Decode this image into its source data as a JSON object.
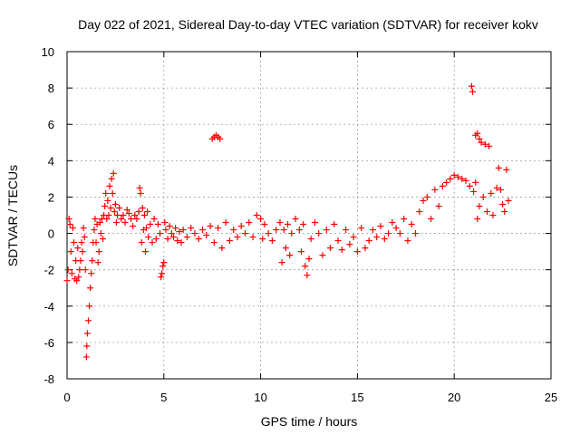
{
  "chart_data": {
    "type": "scatter",
    "title": "Day 022 of 2021, Sidereal Day-to-day VTEC variation (SDTVAR) for receiver kokv",
    "xlabel": "GPS time / hours",
    "ylabel": "SDTVAR / TECUs",
    "xlim": [
      0,
      25
    ],
    "ylim": [
      -8,
      10
    ],
    "xticks": [
      0,
      5,
      10,
      15,
      20,
      25
    ],
    "yticks": [
      -8,
      -6,
      -4,
      -2,
      0,
      2,
      4,
      6,
      8,
      10
    ],
    "grid": true,
    "marker": "+",
    "color": "#ff0000",
    "series": [
      {
        "name": "SDTVAR",
        "points": [
          [
            0.0,
            -2.6
          ],
          [
            0.05,
            -2.0
          ],
          [
            0.1,
            0.8
          ],
          [
            0.15,
            0.5
          ],
          [
            0.2,
            -1.0
          ],
          [
            0.25,
            -2.2
          ],
          [
            0.3,
            0.3
          ],
          [
            0.35,
            -0.5
          ],
          [
            0.4,
            -2.5
          ],
          [
            0.45,
            -1.5
          ],
          [
            0.5,
            -2.6
          ],
          [
            0.55,
            -0.8
          ],
          [
            0.6,
            -2.4
          ],
          [
            0.65,
            -2.0
          ],
          [
            0.7,
            -1.5
          ],
          [
            0.75,
            -0.5
          ],
          [
            0.8,
            -1.0
          ],
          [
            0.85,
            0.3
          ],
          [
            0.9,
            -0.2
          ],
          [
            0.95,
            -2.0
          ],
          [
            1.0,
            -6.8
          ],
          [
            1.02,
            -6.2
          ],
          [
            1.05,
            -5.5
          ],
          [
            1.1,
            -4.8
          ],
          [
            1.15,
            -4.0
          ],
          [
            1.2,
            -3.0
          ],
          [
            1.25,
            -2.2
          ],
          [
            1.3,
            -1.5
          ],
          [
            1.35,
            -0.5
          ],
          [
            1.4,
            0.2
          ],
          [
            1.45,
            0.8
          ],
          [
            1.5,
            -0.5
          ],
          [
            1.55,
            0.5
          ],
          [
            1.6,
            -1.6
          ],
          [
            1.65,
            -1.0
          ],
          [
            1.7,
            0.6
          ],
          [
            1.75,
            0.0
          ],
          [
            1.8,
            0.8
          ],
          [
            1.85,
            -0.3
          ],
          [
            1.9,
            1.0
          ],
          [
            1.95,
            1.5
          ],
          [
            2.0,
            2.2
          ],
          [
            2.05,
            0.8
          ],
          [
            2.1,
            1.8
          ],
          [
            2.15,
            1.0
          ],
          [
            2.2,
            2.6
          ],
          [
            2.25,
            1.4
          ],
          [
            2.3,
            3.0
          ],
          [
            2.35,
            2.2
          ],
          [
            2.4,
            3.3
          ],
          [
            2.45,
            1.2
          ],
          [
            2.5,
            1.6
          ],
          [
            2.55,
            0.6
          ],
          [
            2.6,
            1.0
          ],
          [
            2.7,
            1.4
          ],
          [
            2.8,
            0.8
          ],
          [
            2.9,
            1.0
          ],
          [
            3.0,
            0.6
          ],
          [
            3.1,
            1.3
          ],
          [
            3.2,
            1.1
          ],
          [
            3.3,
            0.8
          ],
          [
            3.4,
            0.4
          ],
          [
            3.5,
            1.0
          ],
          [
            3.6,
            0.8
          ],
          [
            3.7,
            1.2
          ],
          [
            3.75,
            2.5
          ],
          [
            3.8,
            2.2
          ],
          [
            3.85,
            -0.5
          ],
          [
            3.9,
            1.4
          ],
          [
            3.95,
            0.2
          ],
          [
            4.0,
            1.0
          ],
          [
            4.05,
            -1.0
          ],
          [
            4.1,
            0.3
          ],
          [
            4.15,
            1.2
          ],
          [
            4.2,
            -0.2
          ],
          [
            4.3,
            0.5
          ],
          [
            4.4,
            -0.5
          ],
          [
            4.5,
            0.8
          ],
          [
            4.6,
            -0.3
          ],
          [
            4.7,
            0.5
          ],
          [
            4.8,
            0.0
          ],
          [
            4.85,
            -2.4
          ],
          [
            4.9,
            -2.2
          ],
          [
            4.95,
            -1.8
          ],
          [
            5.0,
            -1.6
          ],
          [
            5.05,
            0.6
          ],
          [
            5.1,
            0.2
          ],
          [
            5.2,
            -0.3
          ],
          [
            5.3,
            0.4
          ],
          [
            5.4,
            0.0
          ],
          [
            5.5,
            -0.2
          ],
          [
            5.6,
            0.3
          ],
          [
            5.7,
            -0.4
          ],
          [
            5.8,
            0.1
          ],
          [
            5.9,
            -0.5
          ],
          [
            6.0,
            0.2
          ],
          [
            6.2,
            -0.2
          ],
          [
            6.4,
            0.3
          ],
          [
            6.6,
            0.0
          ],
          [
            6.8,
            -0.3
          ],
          [
            7.0,
            0.2
          ],
          [
            7.2,
            -0.1
          ],
          [
            7.4,
            0.4
          ],
          [
            7.5,
            5.2
          ],
          [
            7.6,
            5.3
          ],
          [
            7.7,
            5.4
          ],
          [
            7.8,
            5.3
          ],
          [
            7.9,
            5.2
          ],
          [
            7.6,
            -0.5
          ],
          [
            7.8,
            0.3
          ],
          [
            8.0,
            -0.8
          ],
          [
            8.2,
            0.6
          ],
          [
            8.4,
            -0.4
          ],
          [
            8.6,
            0.2
          ],
          [
            8.8,
            -0.2
          ],
          [
            9.0,
            0.4
          ],
          [
            9.2,
            0.0
          ],
          [
            9.4,
            0.6
          ],
          [
            9.6,
            -0.2
          ],
          [
            9.8,
            1.0
          ],
          [
            10.0,
            0.8
          ],
          [
            10.1,
            -0.3
          ],
          [
            10.2,
            0.5
          ],
          [
            10.4,
            0.0
          ],
          [
            10.6,
            -0.4
          ],
          [
            10.8,
            0.2
          ],
          [
            11.0,
            0.6
          ],
          [
            11.1,
            -1.6
          ],
          [
            11.2,
            0.2
          ],
          [
            11.3,
            -0.8
          ],
          [
            11.4,
            0.5
          ],
          [
            11.5,
            -1.2
          ],
          [
            11.6,
            0.0
          ],
          [
            11.8,
            0.8
          ],
          [
            12.0,
            0.2
          ],
          [
            12.1,
            -1.0
          ],
          [
            12.2,
            0.5
          ],
          [
            12.3,
            -1.8
          ],
          [
            12.4,
            -2.3
          ],
          [
            12.5,
            -1.4
          ],
          [
            12.6,
            -0.3
          ],
          [
            12.8,
            0.6
          ],
          [
            13.0,
            0.0
          ],
          [
            13.2,
            -1.2
          ],
          [
            13.4,
            0.2
          ],
          [
            13.6,
            -0.8
          ],
          [
            13.8,
            0.5
          ],
          [
            14.0,
            -0.4
          ],
          [
            14.2,
            -0.9
          ],
          [
            14.4,
            0.2
          ],
          [
            14.6,
            -0.6
          ],
          [
            14.8,
            -0.2
          ],
          [
            15.0,
            -1.0
          ],
          [
            15.2,
            0.3
          ],
          [
            15.4,
            -0.8
          ],
          [
            15.6,
            -0.4
          ],
          [
            15.8,
            0.2
          ],
          [
            16.0,
            -0.2
          ],
          [
            16.2,
            0.4
          ],
          [
            16.4,
            -0.3
          ],
          [
            16.6,
            0.0
          ],
          [
            16.8,
            0.6
          ],
          [
            17.0,
            0.3
          ],
          [
            17.2,
            0.0
          ],
          [
            17.4,
            0.8
          ],
          [
            17.6,
            -0.4
          ],
          [
            17.8,
            0.5
          ],
          [
            18.0,
            0.0
          ],
          [
            18.2,
            1.2
          ],
          [
            18.4,
            1.8
          ],
          [
            18.6,
            2.0
          ],
          [
            18.8,
            0.8
          ],
          [
            19.0,
            2.4
          ],
          [
            19.2,
            1.5
          ],
          [
            19.4,
            2.6
          ],
          [
            19.6,
            2.8
          ],
          [
            19.8,
            3.0
          ],
          [
            20.0,
            3.2
          ],
          [
            20.2,
            3.1
          ],
          [
            20.4,
            3.0
          ],
          [
            20.6,
            2.9
          ],
          [
            20.8,
            2.6
          ],
          [
            20.9,
            8.1
          ],
          [
            20.95,
            7.8
          ],
          [
            21.0,
            2.3
          ],
          [
            21.1,
            5.4
          ],
          [
            21.2,
            5.5
          ],
          [
            21.3,
            5.2
          ],
          [
            21.4,
            5.0
          ],
          [
            21.6,
            4.9
          ],
          [
            21.8,
            4.8
          ],
          [
            21.1,
            2.8
          ],
          [
            21.2,
            0.8
          ],
          [
            21.3,
            1.5
          ],
          [
            21.5,
            2.0
          ],
          [
            21.7,
            1.2
          ],
          [
            21.9,
            2.2
          ],
          [
            22.0,
            1.0
          ],
          [
            22.2,
            2.5
          ],
          [
            22.3,
            3.6
          ],
          [
            22.4,
            2.4
          ],
          [
            22.5,
            1.6
          ],
          [
            22.6,
            1.2
          ],
          [
            22.7,
            3.5
          ],
          [
            22.8,
            1.8
          ]
        ]
      }
    ]
  }
}
